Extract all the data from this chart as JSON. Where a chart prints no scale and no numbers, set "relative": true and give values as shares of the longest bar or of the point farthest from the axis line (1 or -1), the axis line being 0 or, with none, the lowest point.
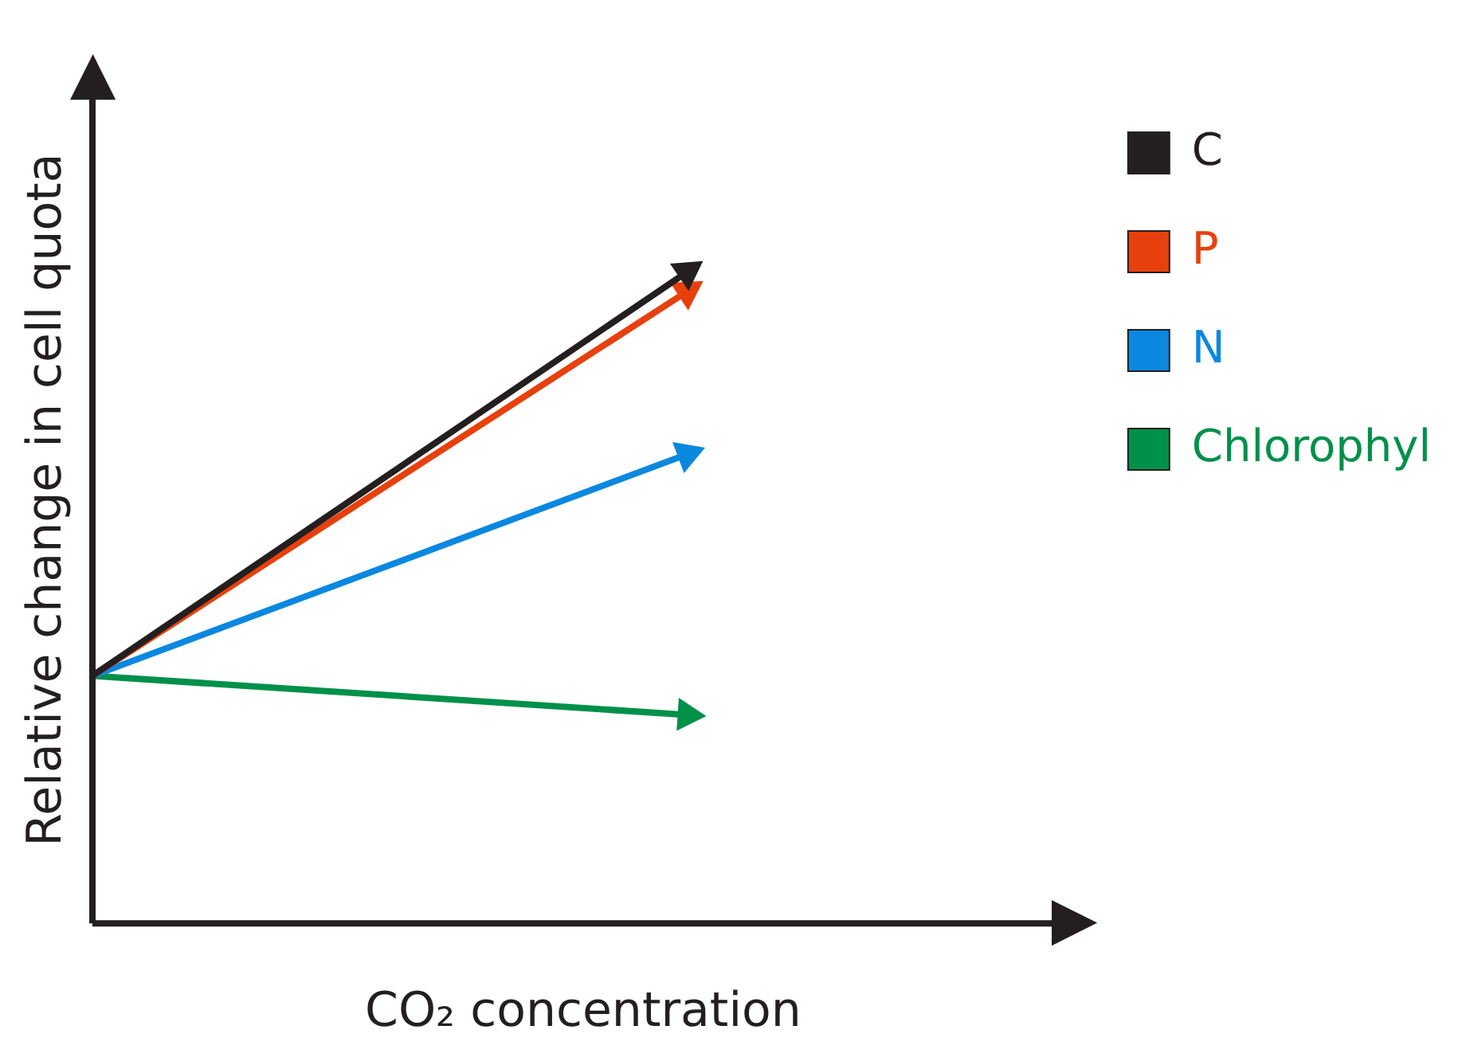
{
  "chart_data": {
    "type": "line",
    "relative": true,
    "xlabel": "CO₂ concentration",
    "ylabel": "Relative change in cell quota",
    "categories": [
      null,
      null
    ],
    "legend": "right",
    "marker": "triangle",
    "line_style": "solid",
    "grid": false,
    "series": [
      {
        "name": "C",
        "color": "#231f20",
        "values": [
          0.38,
          1
        ]
      },
      {
        "name": "P",
        "color": "#e8400c",
        "values": [
          0.38,
          0.97
        ]
      },
      {
        "name": "N",
        "color": "#0a88e0",
        "values": [
          0.38,
          0.72
        ]
      },
      {
        "name": "Chlorophyl",
        "color": "#00904a",
        "values": [
          0.38,
          0.32
        ]
      }
    ]
  }
}
